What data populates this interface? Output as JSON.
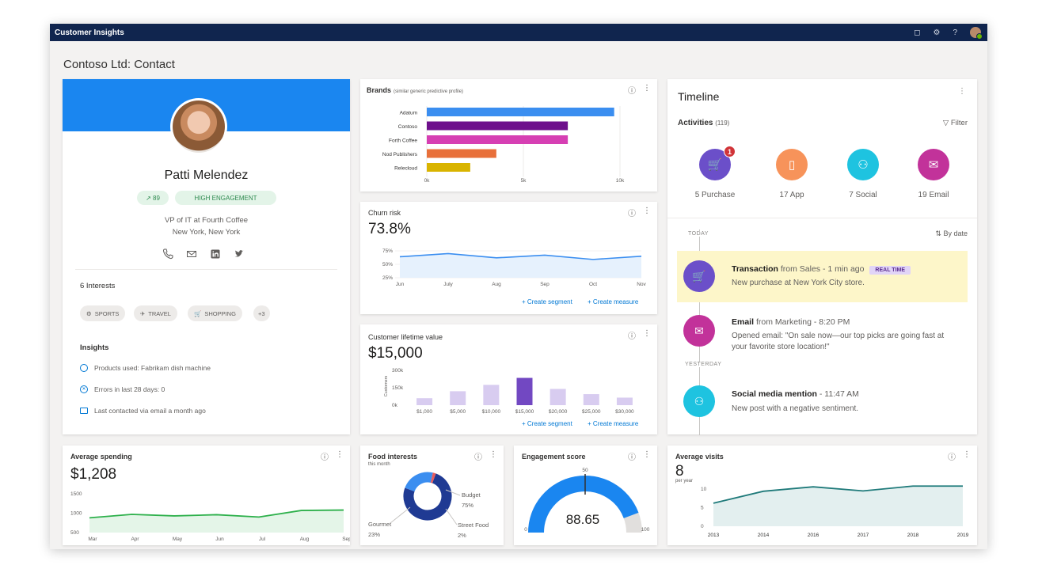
{
  "app": {
    "title": "Customer Insights"
  },
  "header_icons": [
    "bell-icon",
    "gear-icon",
    "help-icon",
    "user-avatar"
  ],
  "header_glyphs": {
    "bell": "◻",
    "gear": "⚙",
    "help": "?"
  },
  "page": {
    "title": "Contoso Ltd: Contact"
  },
  "profile": {
    "name": "Patti Melendez",
    "score": "89",
    "score_icon": "↗",
    "engagement": "HIGH ENGAGEMENT",
    "job": "VP of IT at Fourth Coffee",
    "location": "New York, New York",
    "contacts": [
      "phone-icon",
      "email-icon",
      "linkedin-icon",
      "twitter-icon"
    ],
    "interests_title": "6 Interests",
    "interests": [
      {
        "icon": "sports-icon",
        "glyph": "⚙",
        "label": "SPORTS"
      },
      {
        "icon": "travel-icon",
        "glyph": "✈",
        "label": "TRAVEL"
      },
      {
        "icon": "shopping-icon",
        "glyph": "🛒",
        "label": "SHOPPING"
      }
    ],
    "interests_more": "+3",
    "insights_title": "Insights",
    "insights": [
      "Products used: Fabrikam dish machine",
      "Errors in last 28 days: 0",
      "Last contacted via email a month ago"
    ]
  },
  "brands": {
    "title": "Brands",
    "subtitle": "(similar generic predictive profile)",
    "chart_data": {
      "type": "bar",
      "orientation": "horizontal",
      "categories": [
        "Adatum",
        "Contoso",
        "Forth Coffee",
        "Nod Publishers",
        "Relecloud"
      ],
      "values": [
        9700,
        7300,
        7300,
        3600,
        2250
      ],
      "colors": [
        "#3b8ef0",
        "#6e0f8c",
        "#d63fb3",
        "#e8703a",
        "#d9b400"
      ],
      "xlim": [
        0,
        10000
      ],
      "xticks": [
        "0k",
        "5k",
        "10k"
      ]
    }
  },
  "churn": {
    "title": "Churn risk",
    "value": "73.8%",
    "chart_data": {
      "type": "line",
      "x": [
        "Jun",
        "July",
        "Aug",
        "Sep",
        "Oct",
        "Nov"
      ],
      "values": [
        64,
        70,
        62,
        67,
        59,
        65
      ],
      "ylim": [
        25,
        75
      ],
      "yticks": [
        "75%",
        "50%",
        "25%"
      ],
      "color": "#3b8ef0"
    },
    "links": [
      "Create segment",
      "Create measure"
    ]
  },
  "clv": {
    "title": "Customer lifetime value",
    "value": "$15,000",
    "chart_data": {
      "type": "bar",
      "categories": [
        "$1,000",
        "$5,000",
        "$10,000",
        "$15,000",
        "$20,000",
        "$25,000",
        "$30,000"
      ],
      "values": [
        60,
        120,
        175,
        235,
        140,
        95,
        65
      ],
      "highlight_index": 3,
      "ylabel": "Customers",
      "yticks": [
        "300k",
        "150k",
        "0k"
      ],
      "ylim": [
        0,
        300
      ]
    },
    "links": [
      "Create segment",
      "Create measure"
    ]
  },
  "timeline": {
    "title": "Timeline",
    "activities_label": "Activities",
    "activities_count": "(119)",
    "filter_label": "Filter",
    "activities": [
      {
        "icon": "cart-icon",
        "glyph": "🛒",
        "label": "5 Purchase",
        "color": "#6b4fc9",
        "badge": "1"
      },
      {
        "icon": "phone-icon",
        "glyph": "▯",
        "label": "17 App",
        "color": "#f7935a"
      },
      {
        "icon": "social-icon",
        "glyph": "⚇",
        "label": "7 Social",
        "color": "#1ec3e0"
      },
      {
        "icon": "email-icon",
        "glyph": "✉",
        "label": "19 Email",
        "color": "#c2329a"
      }
    ],
    "today_label": "TODAY",
    "yesterday_label": "YESTERDAY",
    "sort_label": "By date",
    "events": [
      {
        "title": "Transaction",
        "source": "from Sales - 1 min ago",
        "tag": "REAL TIME",
        "body": "New purchase at New York City store.",
        "color": "#6b4fc9",
        "icon": "cart-icon",
        "glyph": "🛒"
      },
      {
        "title": "Email",
        "source": "from Marketing - 8:20 PM",
        "body": "Opened email: \"On sale now—our top picks are going fast at your favorite store location!\"",
        "color": "#c2329a",
        "icon": "email-icon",
        "glyph": "✉"
      },
      {
        "title": "Social media mention",
        "source": "- 11:47 AM",
        "body": "New post with a negative sentiment.",
        "color": "#1ec3e0",
        "icon": "social-icon",
        "glyph": "⚇"
      }
    ]
  },
  "avg_spending": {
    "title": "Average spending",
    "value": "$1,208",
    "chart_data": {
      "type": "area",
      "x": [
        "Mar",
        "Apr",
        "May",
        "Jun",
        "Jul",
        "Aug",
        "Sep"
      ],
      "values": [
        880,
        970,
        930,
        960,
        900,
        1070,
        1080
      ],
      "ylim": [
        500,
        1500
      ],
      "yticks": [
        "1500",
        "1000",
        "500"
      ],
      "color": "#2db04b"
    }
  },
  "food": {
    "title": "Food interests",
    "subtitle": "this month",
    "chart_data": {
      "type": "pie",
      "donut": true,
      "slices": [
        {
          "label": "Budget",
          "value": 75,
          "display": "75%",
          "color": "#1f3a93"
        },
        {
          "label": "Gourmet",
          "value": 23,
          "display": "23%",
          "color": "#3b8ef0"
        },
        {
          "label": "Street Food",
          "value": 2,
          "display": "2%",
          "color": "#e85a5a"
        }
      ]
    }
  },
  "engagement": {
    "title": "Engagement score",
    "value": "88.65",
    "chart_data": {
      "type": "gauge",
      "value": 88.65,
      "min": 0,
      "max": 100,
      "marker": 50,
      "min_label": "0",
      "max_label": "100",
      "marker_label": "50",
      "color": "#1a86f0"
    }
  },
  "avg_visits": {
    "title": "Average visits",
    "value": "8",
    "unit": "per year",
    "chart_data": {
      "type": "area",
      "x": [
        "2013",
        "2014",
        "2016",
        "2017",
        "2018",
        "2019"
      ],
      "values": [
        6.2,
        9.4,
        10.6,
        9.5,
        10.8,
        10.8
      ],
      "ylim": [
        0,
        10
      ],
      "yticks": [
        "10",
        "5",
        "0"
      ],
      "color": "#1f7a7a"
    }
  }
}
